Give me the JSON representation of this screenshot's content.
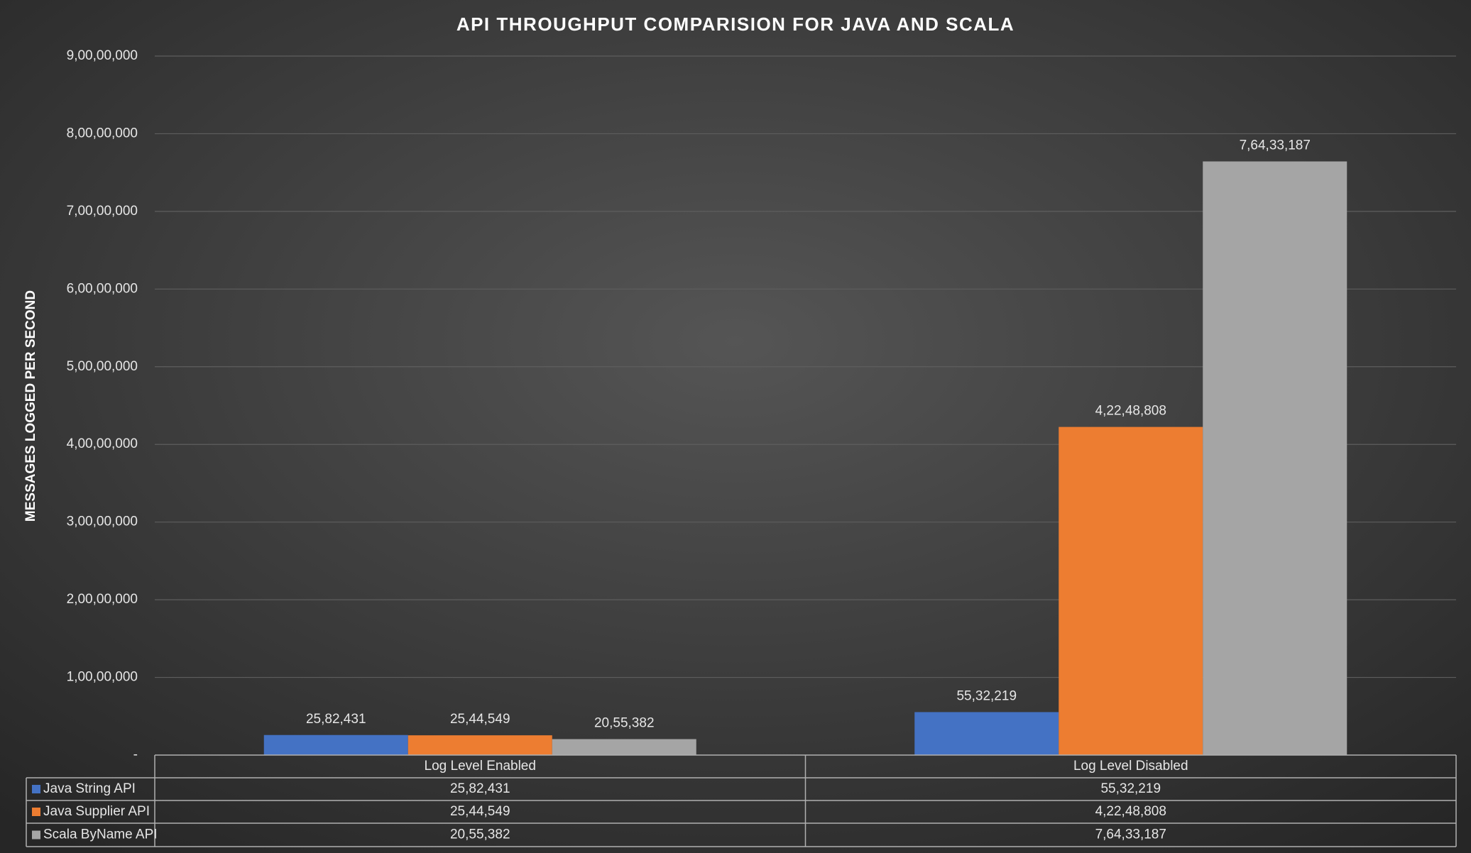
{
  "chart_data": {
    "type": "bar",
    "title": "API THROUGHPUT COMPARISION FOR JAVA AND SCALA",
    "y_label": "MESSAGES LOGGED PER SECOND",
    "categories": [
      "Log Level Enabled",
      "Log Level Disabled"
    ],
    "series": [
      {
        "name": "Java String API",
        "color": "#4472c4",
        "values": [
          2582431,
          5532219
        ],
        "value_labels": [
          "25,82,431",
          "55,32,219"
        ]
      },
      {
        "name": "Java Supplier API",
        "color": "#ed7d31",
        "values": [
          2544549,
          42248808
        ],
        "value_labels": [
          "25,44,549",
          "4,22,48,808"
        ]
      },
      {
        "name": "Scala ByName API",
        "color": "#a5a5a5",
        "values": [
          2055382,
          76433187
        ],
        "value_labels": [
          "20,55,382",
          "7,64,33,187"
        ]
      }
    ],
    "ylim": [
      0,
      90000000
    ],
    "yticks": [
      {
        "value": 0,
        "label": "-"
      },
      {
        "value": 10000000,
        "label": "1,00,00,000"
      },
      {
        "value": 20000000,
        "label": "2,00,00,000"
      },
      {
        "value": 30000000,
        "label": "3,00,00,000"
      },
      {
        "value": 40000000,
        "label": "4,00,00,000"
      },
      {
        "value": 50000000,
        "label": "5,00,00,000"
      },
      {
        "value": 60000000,
        "label": "6,00,00,000"
      },
      {
        "value": 70000000,
        "label": "7,00,00,000"
      },
      {
        "value": 80000000,
        "label": "8,00,00,000"
      },
      {
        "value": 90000000,
        "label": "9,00,00,000"
      }
    ],
    "grid": true,
    "data_table": true
  }
}
